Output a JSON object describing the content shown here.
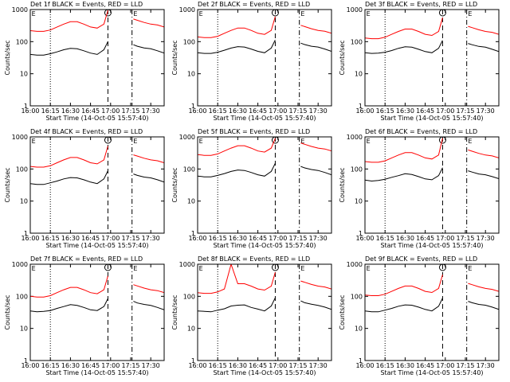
{
  "chart_data": [
    {
      "type": "line",
      "title": "Det 1f BLACK = Events, RED = LLD",
      "xlabel": "Start Time (14-Oct-05 15:57:40)",
      "ylabel": "Counts/sec",
      "ylog": true,
      "x": [
        "16:00",
        "16:05",
        "16:10",
        "16:15",
        "16:20",
        "16:25",
        "16:30",
        "16:35",
        "16:40",
        "16:45",
        "16:50",
        "16:55",
        "16:58",
        "17:05",
        "17:17",
        "17:20",
        "17:25",
        "17:30",
        "17:35",
        "17:40"
      ],
      "series": [
        {
          "color": "#000000",
          "values": [
            40,
            38,
            38,
            42,
            48,
            56,
            62,
            60,
            52,
            44,
            40,
            56,
            100,
            null,
            80,
            72,
            64,
            60,
            52,
            44
          ]
        },
        {
          "color": "#ff0000",
          "values": [
            220,
            209,
            209,
            231,
            286,
            352,
            418,
            418,
            352,
            286,
            264,
            352,
            946,
            null,
            506,
            462,
            396,
            352,
            330,
            286
          ]
        }
      ],
      "xlim": [
        "16:00",
        "17:40"
      ],
      "xticks": [
        "16:00",
        "16:15",
        "16:30",
        "16:45",
        "17:00",
        "17:15",
        "17:30"
      ],
      "ylim": [
        1,
        1000
      ],
      "yticks": [
        1,
        10,
        100,
        1000
      ],
      "vlines": [
        {
          "x": "16:15",
          "style": "dotted"
        },
        {
          "x": "16:58",
          "style": "dashed"
        },
        {
          "x": "17:16",
          "style": "dashdot"
        }
      ],
      "annotations": [
        {
          "x": "16:01",
          "text": "E"
        },
        {
          "x": "17:17",
          "text": "E"
        }
      ]
    },
    {
      "type": "line",
      "title": "Det 2f BLACK = Events, RED = LLD",
      "xlabel": "Start Time (14-Oct-05 15:57:40)",
      "ylabel": "Counts/sec",
      "ylog": true,
      "x": [
        "16:00",
        "16:05",
        "16:10",
        "16:15",
        "16:20",
        "16:25",
        "16:30",
        "16:35",
        "16:40",
        "16:45",
        "16:50",
        "16:55",
        "16:58",
        "17:05",
        "17:17",
        "17:20",
        "17:25",
        "17:30",
        "17:35",
        "17:40"
      ],
      "series": [
        {
          "color": "#000000",
          "values": [
            45,
            43,
            43,
            47,
            54,
            63,
            70,
            68,
            59,
            50,
            45,
            63,
            113,
            null,
            90,
            81,
            72,
            68,
            59,
            50
          ]
        },
        {
          "color": "#ff0000",
          "values": [
            140,
            133,
            133,
            147,
            182,
            224,
            266,
            266,
            224,
            182,
            168,
            224,
            602,
            null,
            322,
            294,
            252,
            224,
            210,
            182
          ]
        }
      ],
      "xlim": [
        "16:00",
        "17:40"
      ],
      "xticks": [
        "16:00",
        "16:15",
        "16:30",
        "16:45",
        "17:00",
        "17:15",
        "17:30"
      ],
      "ylim": [
        1,
        1000
      ],
      "yticks": [
        1,
        10,
        100,
        1000
      ],
      "vlines": [
        {
          "x": "16:15",
          "style": "dotted"
        },
        {
          "x": "16:58",
          "style": "dashed"
        },
        {
          "x": "17:16",
          "style": "dashdot"
        }
      ],
      "annotations": [
        {
          "x": "16:01",
          "text": "E"
        },
        {
          "x": "17:17",
          "text": "E"
        }
      ]
    },
    {
      "type": "line",
      "title": "Det 3f BLACK = Events, RED = LLD",
      "xlabel": "Start Time (14-Oct-05 15:57:40)",
      "ylabel": "Counts/sec",
      "ylog": true,
      "x": [
        "16:00",
        "16:05",
        "16:10",
        "16:15",
        "16:20",
        "16:25",
        "16:30",
        "16:35",
        "16:40",
        "16:45",
        "16:50",
        "16:55",
        "16:58",
        "17:05",
        "17:17",
        "17:20",
        "17:25",
        "17:30",
        "17:35",
        "17:40"
      ],
      "series": [
        {
          "color": "#000000",
          "values": [
            45,
            43,
            44,
            47,
            53,
            62,
            69,
            67,
            58,
            49,
            45,
            62,
            110,
            null,
            88,
            80,
            71,
            67,
            58,
            49
          ]
        },
        {
          "color": "#ff0000",
          "values": [
            130,
            124,
            124,
            137,
            169,
            208,
            247,
            247,
            208,
            169,
            156,
            208,
            559,
            null,
            299,
            273,
            234,
            208,
            195,
            169
          ]
        }
      ],
      "xlim": [
        "16:00",
        "17:40"
      ],
      "xticks": [
        "16:00",
        "16:15",
        "16:30",
        "16:45",
        "17:00",
        "17:15",
        "17:30"
      ],
      "ylim": [
        1,
        1000
      ],
      "yticks": [
        1,
        10,
        100,
        1000
      ],
      "vlines": [
        {
          "x": "16:15",
          "style": "dotted"
        },
        {
          "x": "16:58",
          "style": "dashed"
        },
        {
          "x": "17:16",
          "style": "dashdot"
        }
      ],
      "annotations": [
        {
          "x": "16:01",
          "text": "E"
        },
        {
          "x": "17:17",
          "text": "E"
        }
      ]
    },
    {
      "type": "line",
      "title": "Det 4f BLACK = Events, RED = LLD",
      "xlabel": "Start Time (14-Oct-05 15:57:40)",
      "ylabel": "Counts/sec",
      "ylog": true,
      "x": [
        "16:00",
        "16:05",
        "16:10",
        "16:15",
        "16:20",
        "16:25",
        "16:30",
        "16:35",
        "16:40",
        "16:45",
        "16:50",
        "16:55",
        "16:58",
        "17:05",
        "17:17",
        "17:20",
        "17:25",
        "17:30",
        "17:35",
        "17:40"
      ],
      "series": [
        {
          "color": "#000000",
          "values": [
            35,
            33,
            33,
            37,
            42,
            49,
            54,
            53,
            46,
            39,
            35,
            49,
            88,
            null,
            70,
            63,
            56,
            53,
            46,
            39
          ]
        },
        {
          "color": "#ff0000",
          "values": [
            120,
            114,
            114,
            126,
            156,
            192,
            228,
            228,
            192,
            156,
            144,
            192,
            516,
            null,
            276,
            252,
            216,
            192,
            180,
            156
          ]
        }
      ],
      "xlim": [
        "16:00",
        "17:40"
      ],
      "xticks": [
        "16:00",
        "16:15",
        "16:30",
        "16:45",
        "17:00",
        "17:15",
        "17:30"
      ],
      "ylim": [
        1,
        1000
      ],
      "yticks": [
        1,
        10,
        100,
        1000
      ],
      "vlines": [
        {
          "x": "16:15",
          "style": "dotted"
        },
        {
          "x": "16:58",
          "style": "dashed"
        },
        {
          "x": "17:16",
          "style": "dashdot"
        }
      ],
      "annotations": [
        {
          "x": "16:01",
          "text": "E"
        },
        {
          "x": "17:17",
          "text": "E"
        }
      ]
    },
    {
      "type": "line",
      "title": "Det 5f BLACK = Events, RED = LLD",
      "xlabel": "Start Time (14-Oct-05 15:57:40)",
      "ylabel": "Counts/sec",
      "ylog": true,
      "x": [
        "16:00",
        "16:05",
        "16:10",
        "16:15",
        "16:20",
        "16:25",
        "16:30",
        "16:35",
        "16:40",
        "16:45",
        "16:50",
        "16:55",
        "16:58",
        "17:05",
        "17:17",
        "17:20",
        "17:25",
        "17:30",
        "17:35",
        "17:40"
      ],
      "series": [
        {
          "color": "#000000",
          "values": [
            60,
            57,
            57,
            63,
            72,
            84,
            93,
            90,
            78,
            66,
            60,
            84,
            150,
            null,
            120,
            108,
            96,
            90,
            78,
            66
          ]
        },
        {
          "color": "#ff0000",
          "values": [
            280,
            266,
            266,
            294,
            364,
            448,
            532,
            532,
            448,
            364,
            336,
            448,
            900,
            null,
            644,
            588,
            504,
            448,
            420,
            364
          ]
        }
      ],
      "xlim": [
        "16:00",
        "17:40"
      ],
      "xticks": [
        "16:00",
        "16:15",
        "16:30",
        "16:45",
        "17:00",
        "17:15",
        "17:30"
      ],
      "ylim": [
        1,
        1000
      ],
      "yticks": [
        1,
        10,
        100,
        1000
      ],
      "vlines": [
        {
          "x": "16:15",
          "style": "dotted"
        },
        {
          "x": "16:58",
          "style": "dashed"
        },
        {
          "x": "17:16",
          "style": "dashdot"
        }
      ],
      "annotations": [
        {
          "x": "16:01",
          "text": "E"
        },
        {
          "x": "17:17",
          "text": "E"
        }
      ]
    },
    {
      "type": "line",
      "title": "Det 6f BLACK = Events, RED = LLD",
      "xlabel": "Start Time (14-Oct-05 15:57:40)",
      "ylabel": "Counts/sec",
      "ylog": true,
      "x": [
        "16:00",
        "16:05",
        "16:10",
        "16:15",
        "16:20",
        "16:25",
        "16:30",
        "16:35",
        "16:40",
        "16:45",
        "16:50",
        "16:55",
        "16:58",
        "17:05",
        "17:17",
        "17:20",
        "17:25",
        "17:30",
        "17:35",
        "17:40"
      ],
      "series": [
        {
          "color": "#000000",
          "values": [
            45,
            42,
            44,
            48,
            55,
            62,
            71,
            67,
            58,
            49,
            46,
            62,
            110,
            null,
            88,
            80,
            70,
            66,
            58,
            50
          ]
        },
        {
          "color": "#ff0000",
          "values": [
            170,
            162,
            162,
            179,
            221,
            272,
            323,
            323,
            272,
            221,
            204,
            272,
            900,
            null,
            391,
            357,
            306,
            272,
            255,
            221
          ]
        }
      ],
      "xlim": [
        "16:00",
        "17:40"
      ],
      "xticks": [
        "16:00",
        "16:15",
        "16:30",
        "16:45",
        "17:00",
        "17:15",
        "17:30"
      ],
      "ylim": [
        1,
        1000
      ],
      "yticks": [
        1,
        10,
        100,
        1000
      ],
      "vlines": [
        {
          "x": "16:15",
          "style": "dotted"
        },
        {
          "x": "16:58",
          "style": "dashed"
        },
        {
          "x": "17:16",
          "style": "dashdot"
        }
      ],
      "annotations": [
        {
          "x": "16:01",
          "text": "E"
        },
        {
          "x": "17:17",
          "text": "E"
        }
      ]
    },
    {
      "type": "line",
      "title": "Det 7f BLACK = Events, RED = LLD",
      "xlabel": "Start Time (14-Oct-05 15:57:40)",
      "ylabel": "Counts/sec",
      "ylog": true,
      "x": [
        "16:00",
        "16:05",
        "16:10",
        "16:15",
        "16:20",
        "16:25",
        "16:30",
        "16:35",
        "16:40",
        "16:45",
        "16:50",
        "16:55",
        "16:58",
        "17:05",
        "17:17",
        "17:20",
        "17:25",
        "17:30",
        "17:35",
        "17:40"
      ],
      "series": [
        {
          "color": "#000000",
          "values": [
            35,
            33,
            34,
            36,
            42,
            48,
            55,
            52,
            45,
            38,
            36,
            48,
            85,
            null,
            70,
            62,
            56,
            52,
            45,
            38
          ]
        },
        {
          "color": "#ff0000",
          "values": [
            100,
            95,
            95,
            105,
            130,
            160,
            190,
            190,
            160,
            130,
            120,
            160,
            430,
            null,
            230,
            210,
            180,
            160,
            150,
            130
          ]
        }
      ],
      "xlim": [
        "16:00",
        "17:40"
      ],
      "xticks": [
        "16:00",
        "16:15",
        "16:30",
        "16:45",
        "17:00",
        "17:15",
        "17:30"
      ],
      "ylim": [
        1,
        1000
      ],
      "yticks": [
        1,
        10,
        100,
        1000
      ],
      "vlines": [
        {
          "x": "16:15",
          "style": "dotted"
        },
        {
          "x": "16:58",
          "style": "dashed"
        },
        {
          "x": "17:16",
          "style": "dashdot"
        }
      ],
      "annotations": [
        {
          "x": "16:01",
          "text": "E"
        },
        {
          "x": "17:17",
          "text": "E"
        }
      ]
    },
    {
      "type": "line",
      "title": "Det 8f BLACK = Events, RED = LLD",
      "xlabel": "Start Time (14-Oct-05 15:57:40)",
      "ylabel": "Counts/sec",
      "ylog": true,
      "x": [
        "16:00",
        "16:05",
        "16:10",
        "16:15",
        "16:20",
        "16:25",
        "16:30",
        "16:35",
        "16:40",
        "16:45",
        "16:50",
        "16:55",
        "16:58",
        "17:05",
        "17:17",
        "17:20",
        "17:25",
        "17:30",
        "17:35",
        "17:40"
      ],
      "series": [
        {
          "color": "#000000",
          "values": [
            35,
            34,
            33,
            37,
            41,
            50,
            53,
            54,
            45,
            40,
            35,
            50,
            90,
            null,
            72,
            63,
            57,
            52,
            46,
            39
          ]
        },
        {
          "color": "#ff0000",
          "values": [
            130,
            124,
            124,
            137,
            169,
            1000,
            247,
            247,
            208,
            169,
            156,
            208,
            559,
            null,
            299,
            273,
            234,
            208,
            195,
            169
          ]
        }
      ],
      "xlim": [
        "16:00",
        "17:40"
      ],
      "xticks": [
        "16:00",
        "16:15",
        "16:30",
        "16:45",
        "17:00",
        "17:15",
        "17:30"
      ],
      "ylim": [
        1,
        1000
      ],
      "yticks": [
        1,
        10,
        100,
        1000
      ],
      "vlines": [
        {
          "x": "16:15",
          "style": "dotted"
        },
        {
          "x": "16:58",
          "style": "dashed"
        },
        {
          "x": "17:16",
          "style": "dashdot"
        }
      ],
      "annotations": [
        {
          "x": "16:01",
          "text": "E"
        },
        {
          "x": "17:17",
          "text": "E"
        }
      ]
    },
    {
      "type": "line",
      "title": "Det 9f BLACK = Events, RED = LLD",
      "xlabel": "Start Time (14-Oct-05 15:57:40)",
      "ylabel": "Counts/sec",
      "ylog": true,
      "x": [
        "16:00",
        "16:05",
        "16:10",
        "16:15",
        "16:20",
        "16:25",
        "16:30",
        "16:35",
        "16:40",
        "16:45",
        "16:50",
        "16:55",
        "16:58",
        "17:05",
        "17:17",
        "17:20",
        "17:25",
        "17:30",
        "17:35",
        "17:40"
      ],
      "series": [
        {
          "color": "#000000",
          "values": [
            35,
            33,
            33,
            37,
            42,
            49,
            54,
            53,
            46,
            39,
            35,
            49,
            88,
            null,
            70,
            63,
            56,
            53,
            46,
            39
          ]
        },
        {
          "color": "#ff0000",
          "values": [
            110,
            105,
            105,
            116,
            143,
            176,
            209,
            209,
            176,
            143,
            132,
            176,
            473,
            null,
            253,
            231,
            198,
            176,
            165,
            143
          ]
        }
      ],
      "xlim": [
        "16:00",
        "17:40"
      ],
      "xticks": [
        "16:00",
        "16:15",
        "16:30",
        "16:45",
        "17:00",
        "17:15",
        "17:30"
      ],
      "ylim": [
        1,
        1000
      ],
      "yticks": [
        1,
        10,
        100,
        1000
      ],
      "vlines": [
        {
          "x": "16:15",
          "style": "dotted"
        },
        {
          "x": "16:58",
          "style": "dashed"
        },
        {
          "x": "17:16",
          "style": "dashdot"
        }
      ],
      "annotations": [
        {
          "x": "16:01",
          "text": "E"
        },
        {
          "x": "17:17",
          "text": "E"
        }
      ]
    }
  ]
}
